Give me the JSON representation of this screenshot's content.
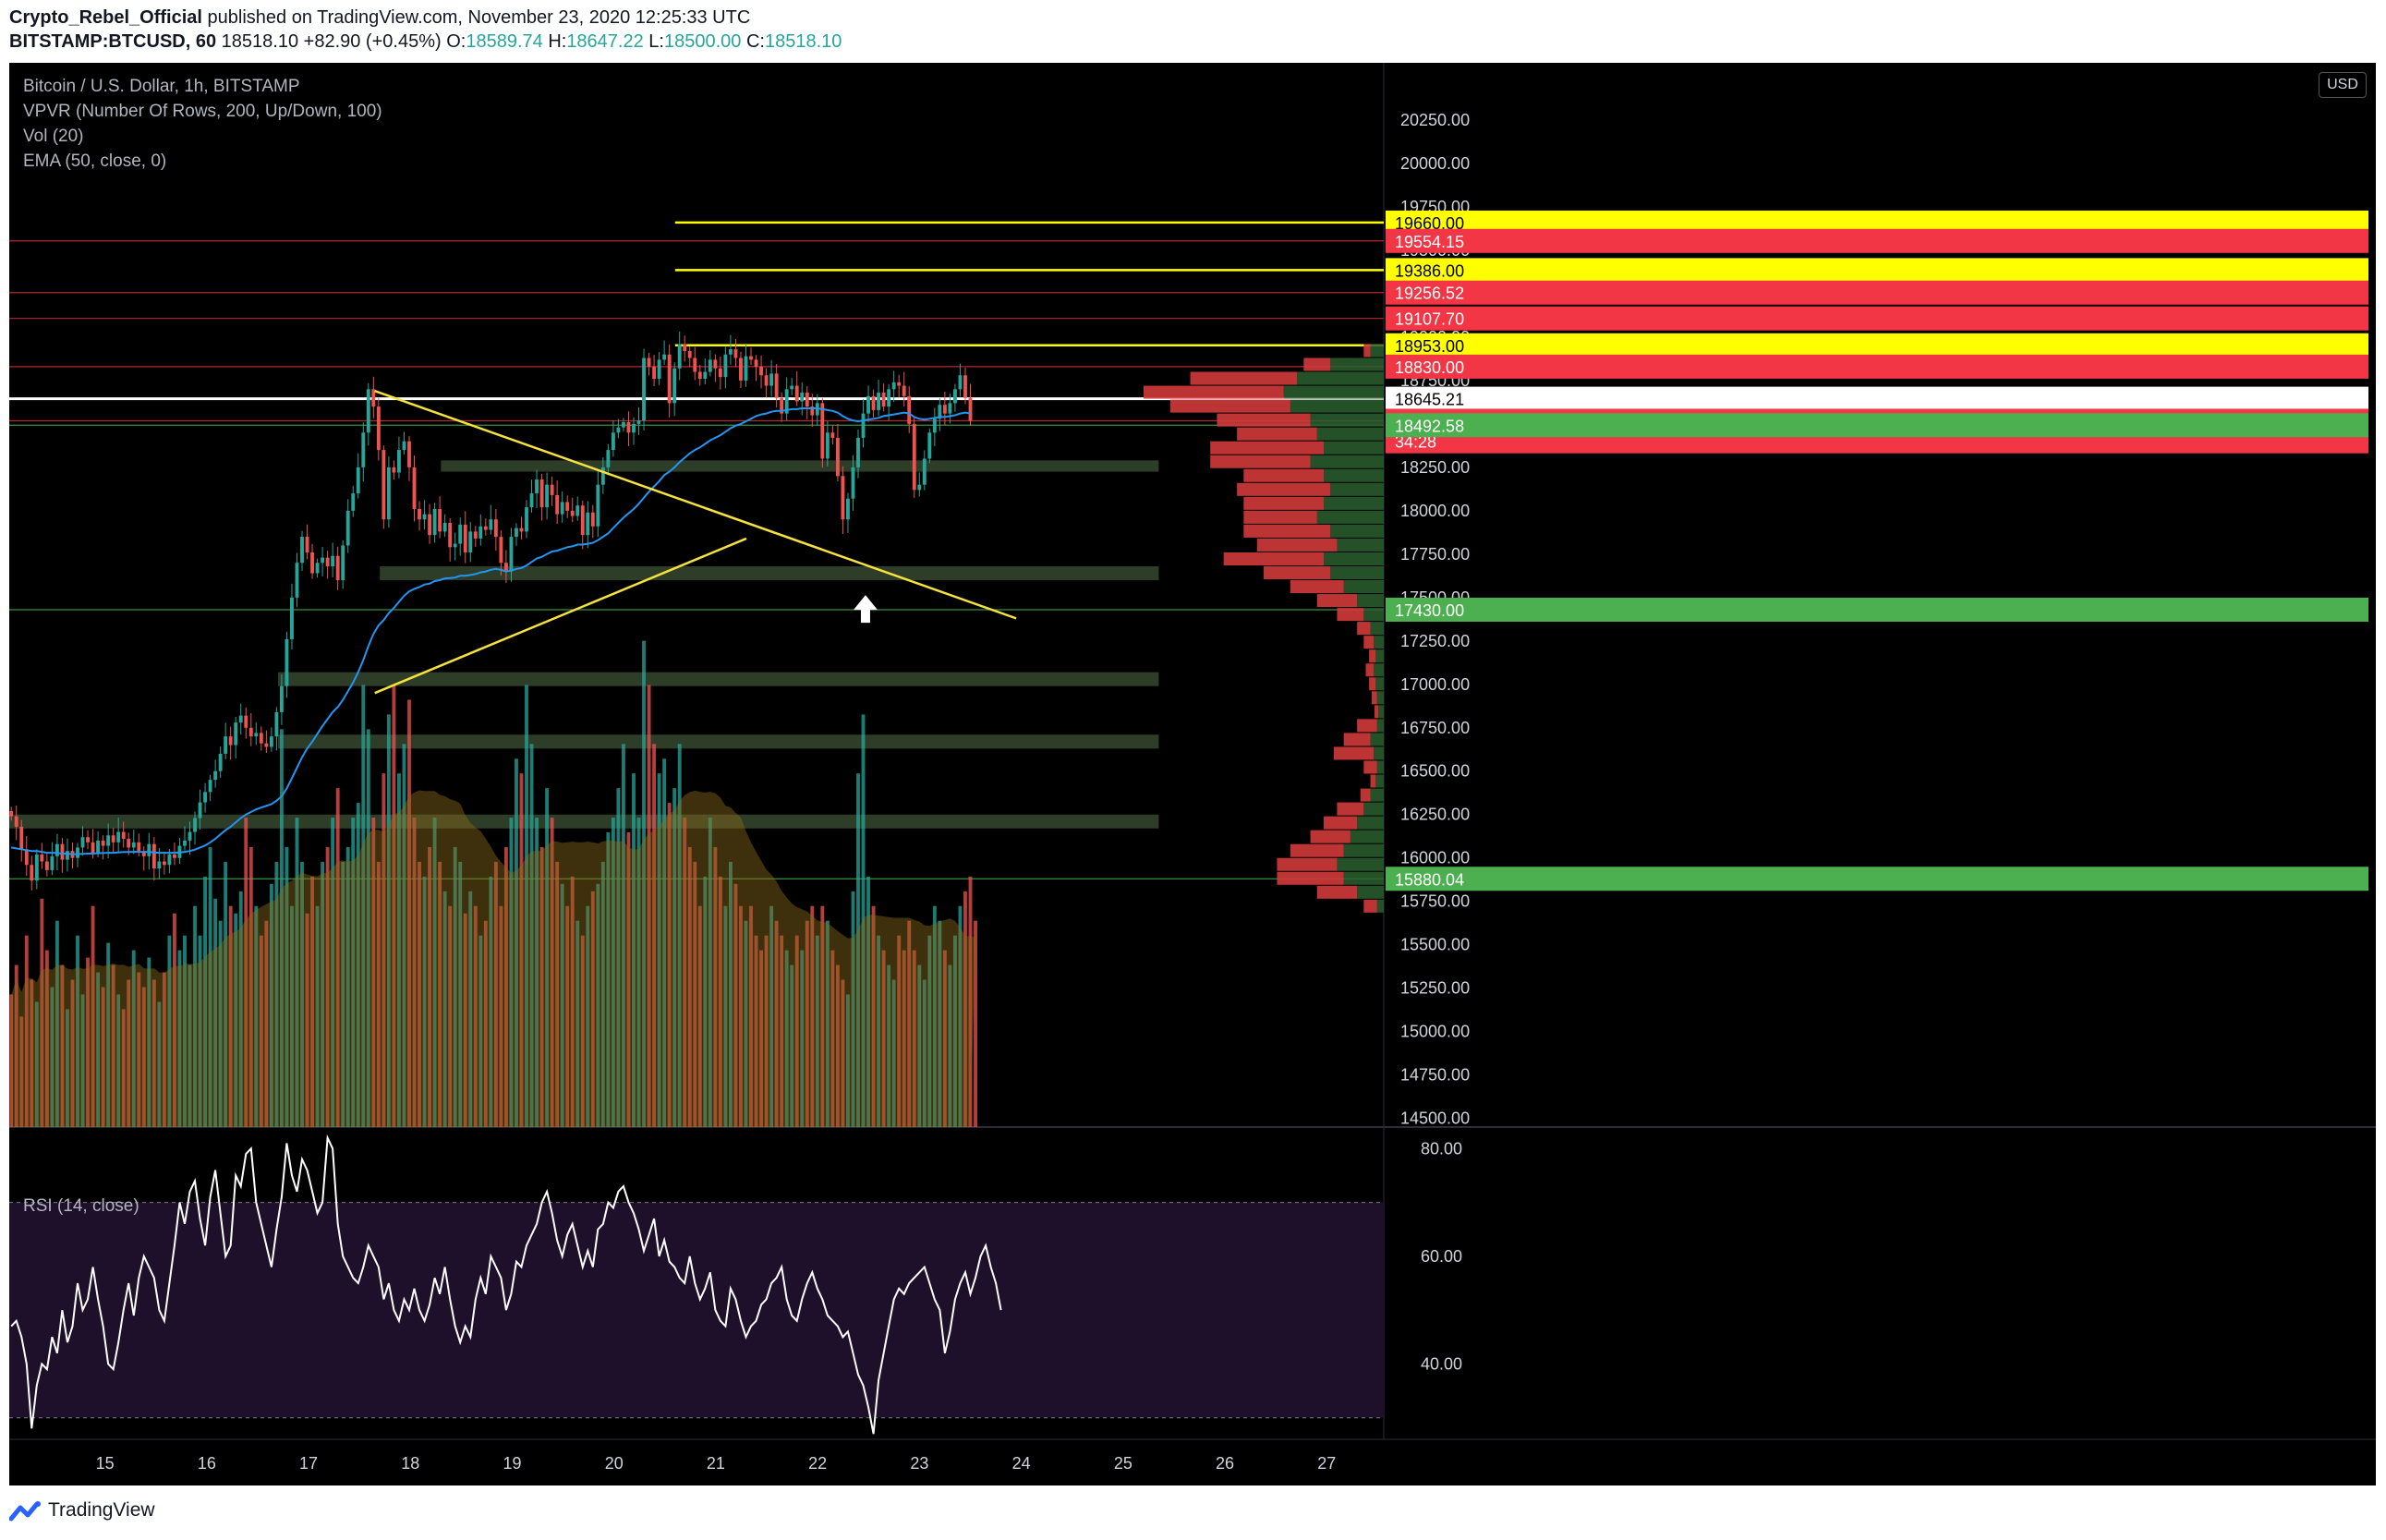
{
  "header": {
    "author": "Crypto_Rebel_Official",
    "published": " published on TradingView.com, November 23, 2020 12:25:33 UTC",
    "symbol": "BITSTAMP:BTCUSD, 60",
    "last": "18518.10",
    "change": "+82.90 (+0.45%)",
    "o_label": "O:",
    "o": "18589.74",
    "h_label": "H:",
    "h": "18647.22",
    "l_label": "L:",
    "l": "18500.00",
    "c_label": "C:",
    "c": "18518.10"
  },
  "legend": {
    "title": "Bitcoin / U.S. Dollar, 1h, BITSTAMP",
    "vpvr": "VPVR (Number Of Rows, 200, Up/Down, 100)",
    "vol": "Vol (20)",
    "ema": "EMA (50, close, 0)",
    "rsi": "RSI (14, close)"
  },
  "currency": "USD",
  "footer": {
    "brand": "TradingView"
  },
  "colors": {
    "background": "#000000",
    "up": "#26a69a",
    "down": "#ef5350",
    "ema": "#2196f3",
    "yellow_line": "#ffff00",
    "zone": "#2e3d28",
    "red_level": "#f23645",
    "green_level": "#4caf50",
    "rsi_band": "#1e0f2a"
  },
  "chart_data": {
    "type": "candlestick",
    "timeframe": "1h",
    "x_ticks": [
      "15",
      "16",
      "17",
      "18",
      "19",
      "20",
      "21",
      "22",
      "23",
      "24",
      "25",
      "26",
      "27"
    ],
    "x_range": [
      14.06,
      27.56
    ],
    "y_ticks": [
      14500,
      14750,
      15000,
      15250,
      15500,
      15750,
      16000,
      16250,
      16500,
      16750,
      17000,
      17250,
      17500,
      17750,
      18000,
      18250,
      18500,
      18750,
      19000,
      19250,
      19500,
      19750,
      20000,
      20250
    ],
    "y_range": [
      14450,
      20580
    ],
    "price_labels": [
      {
        "value": 19660.0,
        "text": "19660.00",
        "kind": "yellow"
      },
      {
        "value": 19554.15,
        "text": "19554.15",
        "kind": "red"
      },
      {
        "value": 19386.0,
        "text": "19386.00",
        "kind": "yellow"
      },
      {
        "value": 19256.52,
        "text": "19256.52",
        "kind": "red"
      },
      {
        "value": 19107.7,
        "text": "19107.70",
        "kind": "red"
      },
      {
        "value": 18953.0,
        "text": "18953.00",
        "kind": "yellow"
      },
      {
        "value": 18830.0,
        "text": "18830.00",
        "kind": "red"
      },
      {
        "value": 18645.21,
        "text": "18645.21",
        "kind": "white"
      },
      {
        "value": 18518.1,
        "text": "18518.10",
        "kind": "red"
      },
      {
        "value": 18400.0,
        "text": "34:28",
        "kind": "red"
      },
      {
        "value": 18492.58,
        "text": "18492.58",
        "kind": "green"
      },
      {
        "value": 17430.0,
        "text": "17430.00",
        "kind": "green"
      },
      {
        "value": 15880.04,
        "text": "15880.04",
        "kind": "green"
      }
    ],
    "yellow_levels": [
      {
        "value": 19660,
        "x_start": 20.6
      },
      {
        "value": 19386,
        "x_start": 20.6
      },
      {
        "value": 18953,
        "x_start": 20.6
      }
    ],
    "support_zones": [
      {
        "low": 18225,
        "high": 18290,
        "x_start": 18.3
      },
      {
        "low": 17600,
        "high": 17680,
        "x_start": 17.7
      },
      {
        "low": 16990,
        "high": 17070,
        "x_start": 16.7
      },
      {
        "low": 16630,
        "high": 16710,
        "x_start": 16.7
      },
      {
        "low": 16170,
        "high": 16250,
        "x_start": 14.06
      }
    ],
    "zone_x_end": 25.35,
    "trendlines": [
      {
        "x1": 17.65,
        "y1": 18690,
        "x2": 23.95,
        "y2": 17380
      },
      {
        "x1": 17.65,
        "y1": 16950,
        "x2": 21.3,
        "y2": 17840
      }
    ],
    "arrow": {
      "x": 22.47,
      "y": 17440
    },
    "closes": [
      16240,
      16180,
      16050,
      15960,
      15870,
      16020,
      15980,
      15930,
      16010,
      16080,
      15990,
      16040,
      16000,
      16060,
      16120,
      16090,
      16030,
      16100,
      16070,
      16130,
      16090,
      16150,
      16110,
      16060,
      16090,
      16040,
      16010,
      16080,
      15940,
      15980,
      15960,
      16020,
      16000,
      16070,
      16100,
      16150,
      16230,
      16320,
      16380,
      16450,
      16500,
      16600,
      16700,
      16650,
      16780,
      16820,
      16750,
      16700,
      16720,
      16660,
      16640,
      16700,
      16840,
      16990,
      17260,
      17500,
      17700,
      17850,
      17760,
      17640,
      17700,
      17730,
      17680,
      17740,
      17600,
      17800,
      18000,
      18100,
      18250,
      18450,
      18700,
      18600,
      18350,
      17950,
      18250,
      18220,
      18350,
      18400,
      18250,
      18010,
      17950,
      17980,
      17860,
      18010,
      17880,
      17930,
      17790,
      17810,
      17920,
      17760,
      17880,
      17840,
      17910,
      17890,
      17950,
      17850,
      17700,
      17650,
      17850,
      17900,
      17880,
      18020,
      18100,
      18180,
      18020,
      18150,
      18090,
      17980,
      18050,
      18000,
      17970,
      18030,
      17860,
      17990,
      17910,
      18150,
      18250,
      18350,
      18450,
      18480,
      18510,
      18450,
      18500,
      18520,
      18880,
      18830,
      18760,
      18870,
      18900,
      18620,
      18820,
      18960,
      18920,
      18880,
      18800,
      18760,
      18800,
      18870,
      18820,
      18770,
      18900,
      18930,
      18880,
      18750,
      18890,
      18870,
      18830,
      18780,
      18720,
      18790,
      18650,
      18560,
      18700,
      18720,
      18630,
      18680,
      18600,
      18550,
      18620,
      18300,
      18450,
      18420,
      18200,
      17950,
      18070,
      18250,
      18420,
      18560,
      18660,
      18580,
      18680,
      18600,
      18700,
      18740,
      18720,
      18660,
      18500,
      18120,
      18150,
      18300,
      18450,
      18530,
      18610,
      18560,
      18620,
      18700,
      18780,
      18650,
      18518
    ],
    "ema50": [
      16060,
      16055,
      16050,
      16045,
      16040,
      16040,
      16035,
      16030,
      16030,
      16028,
      16025,
      16025,
      16022,
      16022,
      16024,
      16025,
      16025,
      16027,
      16028,
      16030,
      16030,
      16032,
      16034,
      16034,
      16035,
      16035,
      16034,
      16035,
      16032,
      16030,
      16030,
      16030,
      16030,
      16032,
      16035,
      16040,
      16048,
      16060,
      16072,
      16090,
      16110,
      16135,
      16160,
      16180,
      16205,
      16230,
      16250,
      16265,
      16280,
      16290,
      16300,
      16310,
      16330,
      16355,
      16400,
      16460,
      16520,
      16580,
      16630,
      16670,
      16715,
      16760,
      16800,
      16840,
      16870,
      16910,
      16960,
      17010,
      17070,
      17140,
      17220,
      17290,
      17340,
      17370,
      17410,
      17440,
      17475,
      17510,
      17535,
      17550,
      17560,
      17575,
      17580,
      17595,
      17600,
      17610,
      17612,
      17615,
      17625,
      17625,
      17630,
      17635,
      17645,
      17650,
      17660,
      17665,
      17660,
      17650,
      17655,
      17665,
      17670,
      17685,
      17705,
      17725,
      17735,
      17750,
      17765,
      17770,
      17780,
      17790,
      17795,
      17805,
      17805,
      17810,
      17815,
      17830,
      17850,
      17870,
      17900,
      17930,
      17960,
      17985,
      18010,
      18040,
      18075,
      18110,
      18140,
      18170,
      18205,
      18225,
      18250,
      18280,
      18305,
      18330,
      18350,
      18365,
      18385,
      18405,
      18420,
      18435,
      18455,
      18475,
      18490,
      18500,
      18515,
      18530,
      18545,
      18555,
      18560,
      18570,
      18575,
      18575,
      18580,
      18585,
      18585,
      18590,
      18590,
      18590,
      18590,
      18585,
      18580,
      18575,
      18565,
      18545,
      18530,
      18520,
      18515,
      18520,
      18525,
      18530,
      18535,
      18545,
      18550,
      18555,
      18560,
      18565,
      18560,
      18540,
      18530,
      18525,
      18530,
      18535,
      18540,
      18540,
      18545,
      18550,
      18560,
      18565,
      18560
    ],
    "volumes": [
      180,
      220,
      150,
      260,
      200,
      170,
      310,
      240,
      190,
      280,
      220,
      160,
      200,
      260,
      180,
      230,
      300,
      210,
      190,
      250,
      220,
      180,
      160,
      200,
      240,
      210,
      190,
      230,
      200,
      170,
      210,
      260,
      290,
      240,
      260,
      220,
      300,
      260,
      340,
      380,
      310,
      280,
      360,
      300,
      290,
      320,
      420,
      380,
      300,
      260,
      280,
      330,
      360,
      540,
      380,
      300,
      420,
      360,
      290,
      340,
      300,
      360,
      380,
      420,
      460,
      360,
      380,
      420,
      440,
      600,
      540,
      420,
      360,
      480,
      560,
      600,
      480,
      520,
      580,
      420,
      360,
      340,
      380,
      420,
      360,
      320,
      300,
      380,
      360,
      290,
      320,
      300,
      260,
      280,
      340,
      360,
      300,
      380,
      420,
      500,
      480,
      600,
      520,
      420,
      380,
      460,
      420,
      360,
      330,
      300,
      340,
      280,
      260,
      300,
      320,
      330,
      360,
      400,
      420,
      460,
      520,
      400,
      480,
      420,
      660,
      600,
      520,
      480,
      500,
      440,
      460,
      520,
      420,
      380,
      360,
      300,
      340,
      420,
      380,
      340,
      300,
      360,
      330,
      300,
      280,
      300,
      260,
      240,
      260,
      300,
      280,
      260,
      240,
      220,
      260,
      240,
      280,
      300,
      260,
      300,
      280,
      240,
      220,
      200,
      180,
      320,
      480,
      560,
      340,
      300,
      260,
      240,
      220,
      200,
      260,
      240,
      280,
      240,
      220,
      200,
      260,
      300,
      280,
      240,
      220,
      260,
      300,
      320,
      340,
      280
    ],
    "vpvr_rows": [
      {
        "price": 18960,
        "up": 20,
        "down": 10
      },
      {
        "price": 18880,
        "up": 80,
        "down": 40
      },
      {
        "price": 18800,
        "up": 130,
        "down": 160
      },
      {
        "price": 18720,
        "up": 150,
        "down": 210
      },
      {
        "price": 18640,
        "up": 140,
        "down": 180
      },
      {
        "price": 18560,
        "up": 110,
        "down": 140
      },
      {
        "price": 18480,
        "up": 100,
        "down": 120
      },
      {
        "price": 18400,
        "up": 90,
        "down": 170
      },
      {
        "price": 18320,
        "up": 110,
        "down": 150
      },
      {
        "price": 18240,
        "up": 90,
        "down": 120
      },
      {
        "price": 18160,
        "up": 80,
        "down": 140
      },
      {
        "price": 18080,
        "up": 90,
        "down": 120
      },
      {
        "price": 18000,
        "up": 100,
        "down": 110
      },
      {
        "price": 17920,
        "up": 80,
        "down": 130
      },
      {
        "price": 17840,
        "up": 70,
        "down": 120
      },
      {
        "price": 17760,
        "up": 90,
        "down": 150
      },
      {
        "price": 17680,
        "up": 80,
        "down": 100
      },
      {
        "price": 17600,
        "up": 60,
        "down": 80
      },
      {
        "price": 17520,
        "up": 40,
        "down": 60
      },
      {
        "price": 17440,
        "up": 30,
        "down": 40
      },
      {
        "price": 17360,
        "up": 20,
        "down": 20
      },
      {
        "price": 17280,
        "up": 15,
        "down": 15
      },
      {
        "price": 17200,
        "up": 12,
        "down": 10
      },
      {
        "price": 17120,
        "up": 15,
        "down": 12
      },
      {
        "price": 17040,
        "up": 12,
        "down": 10
      },
      {
        "price": 16960,
        "up": 10,
        "down": 8
      },
      {
        "price": 16880,
        "up": 8,
        "down": 6
      },
      {
        "price": 16800,
        "up": 10,
        "down": 30
      },
      {
        "price": 16720,
        "up": 20,
        "down": 40
      },
      {
        "price": 16640,
        "up": 15,
        "down": 60
      },
      {
        "price": 16560,
        "up": 10,
        "down": 20
      },
      {
        "price": 16480,
        "up": 12,
        "down": 8
      },
      {
        "price": 16400,
        "up": 20,
        "down": 15
      },
      {
        "price": 16320,
        "up": 30,
        "down": 40
      },
      {
        "price": 16240,
        "up": 40,
        "down": 50
      },
      {
        "price": 16160,
        "up": 50,
        "down": 60
      },
      {
        "price": 16080,
        "up": 60,
        "down": 80
      },
      {
        "price": 16000,
        "up": 70,
        "down": 90
      },
      {
        "price": 15920,
        "up": 60,
        "down": 100
      },
      {
        "price": 15840,
        "up": 40,
        "down": 60
      },
      {
        "price": 15760,
        "up": 10,
        "down": 20
      }
    ],
    "rsi": {
      "ticks": [
        40,
        60,
        80
      ],
      "range": [
        26,
        84
      ],
      "bands": [
        70,
        30
      ],
      "values": [
        47,
        48,
        45,
        40,
        28,
        36,
        40,
        39,
        45,
        42,
        50,
        44,
        47,
        55,
        50,
        52,
        58,
        52,
        47,
        40,
        39,
        44,
        50,
        55,
        49,
        56,
        60,
        58,
        56,
        50,
        48,
        55,
        62,
        70,
        66,
        72,
        74,
        67,
        62,
        71,
        76,
        68,
        60,
        62,
        75,
        73,
        79,
        80,
        70,
        66,
        62,
        58,
        65,
        71,
        81,
        75,
        72,
        78,
        76,
        72,
        68,
        70,
        82,
        80,
        66,
        60,
        58,
        56,
        55,
        58,
        62,
        60,
        58,
        52,
        55,
        50,
        48,
        52,
        50,
        54,
        50,
        48,
        51,
        56,
        53,
        58,
        52,
        47,
        44,
        47,
        45,
        52,
        56,
        53,
        60,
        58,
        56,
        50,
        53,
        59,
        58,
        62,
        64,
        66,
        70,
        72,
        68,
        63,
        60,
        64,
        66,
        62,
        58,
        61,
        58,
        65,
        66,
        70,
        69,
        72,
        73,
        70,
        68,
        65,
        61,
        64,
        67,
        60,
        63,
        59,
        58,
        56,
        55,
        60,
        55,
        52,
        54,
        57,
        50,
        48,
        47,
        54,
        52,
        48,
        45,
        47,
        48,
        51,
        52,
        55,
        56,
        58,
        52,
        49,
        48,
        52,
        55,
        57,
        54,
        52,
        49,
        48,
        47,
        45,
        46,
        42,
        38,
        36,
        32,
        27,
        37,
        42,
        47,
        52,
        54,
        53,
        55,
        56,
        57,
        58,
        55,
        52,
        50,
        42,
        46,
        52,
        55,
        57,
        53,
        56,
        60,
        62,
        58,
        55,
        50
      ]
    }
  }
}
